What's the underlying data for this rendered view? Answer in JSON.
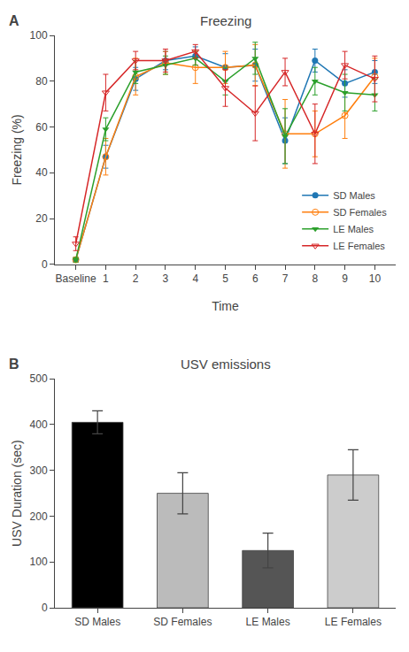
{
  "chart_data": [
    {
      "type": "line",
      "title": "Freezing",
      "xlabel": "Time",
      "ylabel": "Freezing (%)",
      "annotations": [
        "A"
      ],
      "categories": [
        "Baseline",
        "1",
        "2",
        "3",
        "4",
        "5",
        "6",
        "7",
        "8",
        "9",
        "10"
      ],
      "series": [
        {
          "name": "SD Males",
          "marker": "circle",
          "values": [
            2,
            47,
            81,
            89,
            91,
            86,
            87,
            54,
            89,
            79,
            84
          ],
          "errors": [
            1,
            5,
            5,
            4,
            4,
            6,
            7,
            10,
            5,
            6,
            5
          ]
        },
        {
          "name": "SD Females",
          "marker": "circle-open",
          "values": [
            2,
            47,
            82,
            88,
            86,
            86,
            87,
            57,
            57,
            65,
            82
          ],
          "errors": [
            1,
            8,
            8,
            5,
            7,
            7,
            9,
            15,
            10,
            10,
            8
          ]
        },
        {
          "name": "LE Males",
          "marker": "triangle-down",
          "values": [
            2,
            59,
            84,
            87,
            90,
            80,
            90,
            56,
            80,
            75,
            74
          ],
          "errors": [
            1,
            5,
            5,
            4,
            3,
            6,
            7,
            12,
            6,
            8,
            7
          ]
        },
        {
          "name": "LE Females",
          "marker": "triangle-down-open",
          "values": [
            9,
            75,
            89,
            89,
            93,
            77,
            66,
            84,
            57,
            87,
            81
          ],
          "errors": [
            3,
            8,
            4,
            5,
            3,
            8,
            12,
            6,
            13,
            6,
            10
          ]
        }
      ],
      "ylim": [
        0,
        100
      ],
      "yticks": [
        0,
        20,
        40,
        60,
        80,
        100
      ],
      "grid": false,
      "legend": "lower right"
    },
    {
      "type": "bar",
      "title": "USV emissions",
      "ylabel": "USV Duration (sec)",
      "annotations": [
        "B"
      ],
      "categories": [
        "SD Males",
        "SD Females",
        "LE Males",
        "LE Females"
      ],
      "values": [
        405,
        250,
        125,
        290
      ],
      "errors": [
        25,
        45,
        38,
        55
      ],
      "colors": [
        "#000000",
        "#bbbbbb",
        "#555555",
        "#cccccc"
      ],
      "ylim": [
        0,
        500
      ],
      "yticks": [
        0,
        100,
        200,
        300,
        400,
        500
      ],
      "grid": false
    }
  ]
}
